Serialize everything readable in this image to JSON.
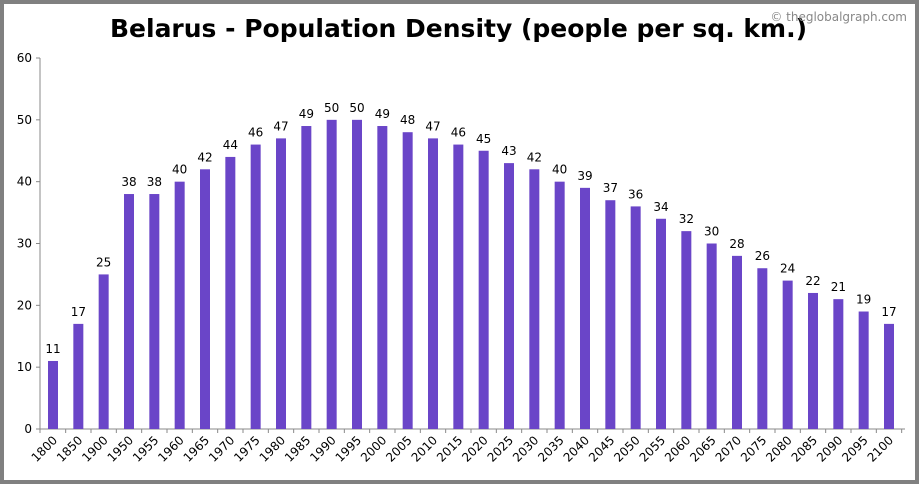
{
  "chart_data": {
    "type": "bar",
    "title": "Belarus - Population Density (people per sq. km.)",
    "watermark": "© theglobalgraph.com",
    "xlabel": "",
    "ylabel": "",
    "ylim": [
      0,
      60
    ],
    "yticks": [
      0,
      10,
      20,
      30,
      40,
      50,
      60
    ],
    "grid": false,
    "bar_color": "#6a45c8",
    "categories": [
      "1800",
      "1850",
      "1900",
      "1950",
      "1955",
      "1960",
      "1965",
      "1970",
      "1975",
      "1980",
      "1985",
      "1990",
      "1995",
      "2000",
      "2005",
      "2010",
      "2015",
      "2020",
      "2025",
      "2030",
      "2035",
      "2040",
      "2045",
      "2050",
      "2055",
      "2060",
      "2065",
      "2070",
      "2075",
      "2080",
      "2085",
      "2090",
      "2095",
      "2100"
    ],
    "values": [
      11,
      17,
      25,
      38,
      38,
      40,
      42,
      44,
      46,
      47,
      49,
      50,
      50,
      49,
      48,
      47,
      46,
      45,
      43,
      42,
      40,
      39,
      37,
      36,
      34,
      32,
      30,
      28,
      26,
      24,
      22,
      21,
      19,
      17
    ]
  }
}
